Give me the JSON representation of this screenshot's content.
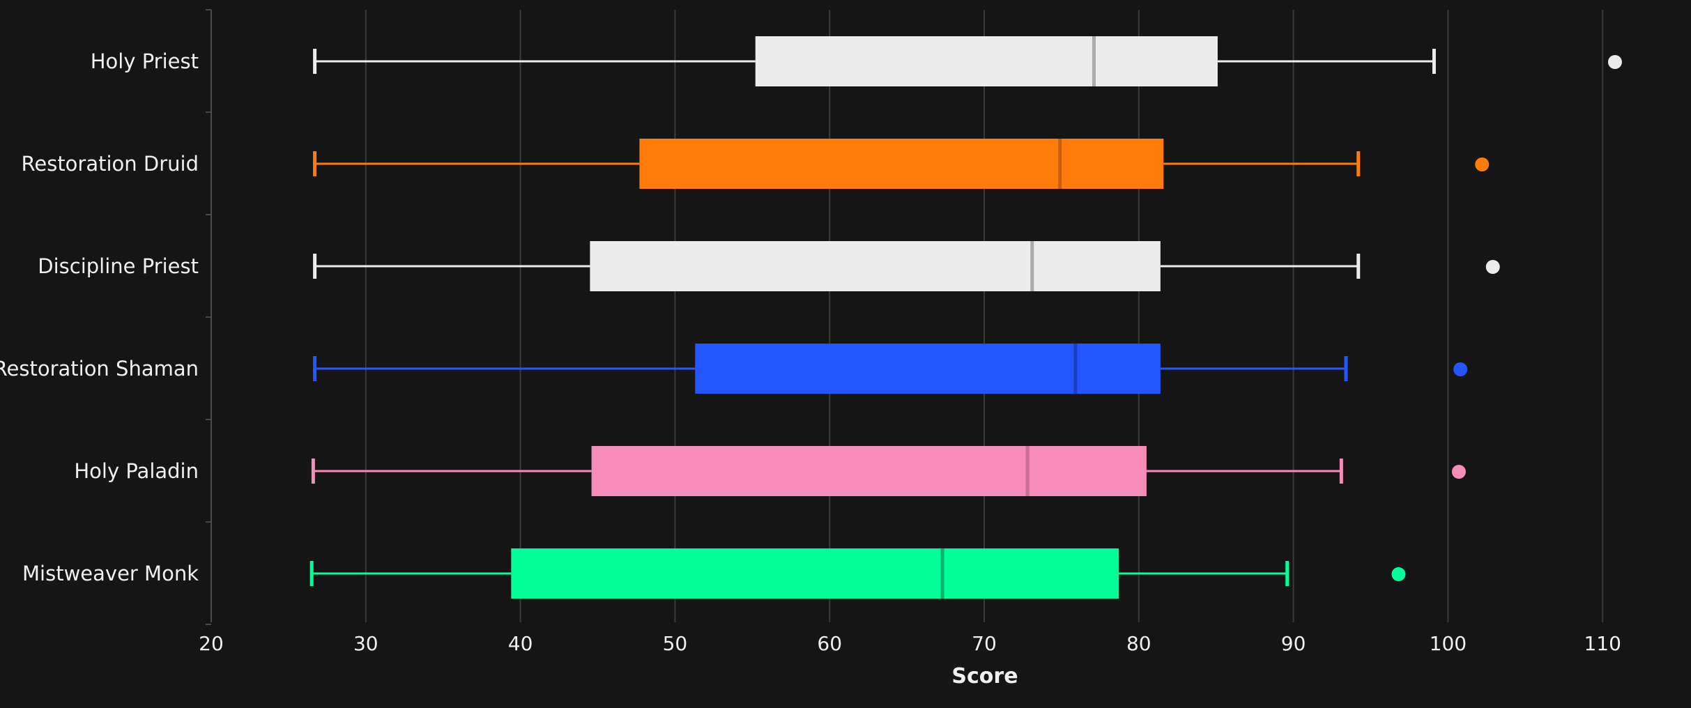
{
  "chart_data": {
    "type": "boxplot",
    "title": "",
    "xlabel": "Score",
    "ylabel": "",
    "xlim": [
      20,
      112
    ],
    "xticks": [
      20,
      30,
      40,
      50,
      60,
      70,
      80,
      90,
      100,
      110
    ],
    "grid": true,
    "orientation": "horizontal",
    "series": [
      {
        "name": "Holy Priest",
        "color": "#ececec",
        "median_color": "#aaaaaa",
        "min": 26.7,
        "q1": 55.2,
        "median": 77.1,
        "q3": 85.1,
        "max": 99.1,
        "outliers": [
          110.8
        ]
      },
      {
        "name": "Restoration Druid",
        "color": "#ff7c0a",
        "median_color": "#c8600a",
        "min": 26.7,
        "q1": 47.7,
        "median": 74.9,
        "q3": 81.6,
        "max": 94.2,
        "outliers": [
          102.2
        ]
      },
      {
        "name": "Discipline Priest",
        "color": "#ececec",
        "median_color": "#aaaaaa",
        "min": 26.7,
        "q1": 44.5,
        "median": 73.1,
        "q3": 81.4,
        "max": 94.2,
        "outliers": [
          102.9
        ]
      },
      {
        "name": "Restoration Shaman",
        "color": "#2257ff",
        "median_color": "#1a3fc4",
        "min": 26.7,
        "q1": 51.3,
        "median": 75.9,
        "q3": 81.4,
        "max": 93.4,
        "outliers": [
          100.8
        ]
      },
      {
        "name": "Holy Paladin",
        "color": "#f58cba",
        "median_color": "#c86f96",
        "min": 26.6,
        "q1": 44.6,
        "median": 72.8,
        "q3": 80.5,
        "max": 93.1,
        "outliers": [
          100.7
        ]
      },
      {
        "name": "Mistweaver Monk",
        "color": "#00ff98",
        "median_color": "#00b86e",
        "min": 26.5,
        "q1": 39.4,
        "median": 67.3,
        "q3": 78.7,
        "max": 89.6,
        "outliers": [
          96.8
        ]
      }
    ]
  },
  "style": {
    "background": "#151515",
    "grid_color": "#3a3a3a",
    "axis_color": "#4a4a4a",
    "text_color": "#f0f0f0"
  }
}
